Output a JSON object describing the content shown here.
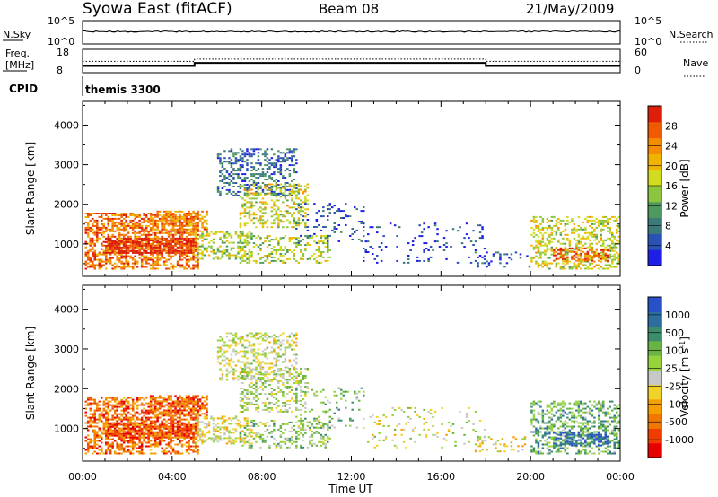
{
  "header": {
    "title": "Syowa East (fitACF)",
    "beam": "Beam 08",
    "date": "21/May/2009"
  },
  "panels": {
    "nsky": {
      "label": "N.Sky",
      "ticks_left": [
        "10^5",
        "10^0"
      ],
      "right_label": "N.Search",
      "ticks_right": [
        "10^5",
        "10^0"
      ],
      "level_frac": 0.55
    },
    "freq": {
      "label_lines": [
        "Freq.",
        "[MHz]"
      ],
      "ticks_left": [
        "18",
        "8"
      ],
      "right_label": "Nave",
      "ticks_right": [
        "60",
        "0"
      ],
      "segments": [
        {
          "start": 0,
          "end": 5,
          "freq": 10.9
        },
        {
          "start": 5,
          "end": 18,
          "freq": 12.2
        },
        {
          "start": 18,
          "end": 24,
          "freq": 10.9
        }
      ],
      "nave_segments": [
        {
          "start": 0,
          "end": 5,
          "nave": 29
        },
        {
          "start": 5,
          "end": 18,
          "nave": 35
        },
        {
          "start": 18,
          "end": 24,
          "nave": 29
        }
      ]
    },
    "cpid": {
      "label": "CPID",
      "program": "themis 3300"
    }
  },
  "colorbars": {
    "power": {
      "title": "Power [dB]",
      "colors": [
        "#1e1ee6",
        "#2a52b4",
        "#3c7a7a",
        "#4e9a5e",
        "#8cc63e",
        "#d2dc1e",
        "#f0b400",
        "#f58c00",
        "#f05a00",
        "#dc1e0a"
      ],
      "labels": [
        "4",
        "8",
        "12",
        "16",
        "20",
        "24",
        "28"
      ]
    },
    "velocity": {
      "title": "Velocity [m s",
      "title_sup": "-1",
      "title_end": "]",
      "colors": [
        "#2850c8",
        "#2e6e9e",
        "#3c8c6e",
        "#6ab446",
        "#96d23c",
        "#c8c8c8",
        "#f0d228",
        "#f5a000",
        "#f07800",
        "#f03c00",
        "#e60000"
      ],
      "labels": [
        "1000",
        "500",
        "100",
        "25",
        "-25",
        "-100",
        "-500",
        "-1000"
      ]
    }
  },
  "chart_data": [
    {
      "type": "heatmap",
      "title": "Power",
      "ylabel": "Slant Range [km]",
      "xlabel": "Time UT",
      "x_ticks": [
        "00:00",
        "04:00",
        "08:00",
        "12:00",
        "16:00",
        "20:00",
        "00:00"
      ],
      "y_ticks": [
        1000,
        2000,
        3000,
        4000
      ],
      "xlim": [
        0,
        24
      ],
      "ylim": [
        180,
        4600
      ],
      "colorbar": "Power [dB]",
      "clusters": [
        {
          "t0": 0.1,
          "t1": 5.1,
          "r0": 350,
          "r1": 1750,
          "level": 0.8,
          "density": 0.55
        },
        {
          "t0": 1.0,
          "t1": 5.0,
          "r0": 750,
          "r1": 1150,
          "level": 0.95,
          "density": 0.75
        },
        {
          "t0": 3.0,
          "t1": 5.5,
          "r0": 1300,
          "r1": 1800,
          "level": 0.75,
          "density": 0.5
        },
        {
          "t0": 5.0,
          "t1": 7.5,
          "r0": 600,
          "r1": 1300,
          "level": 0.5,
          "density": 0.4
        },
        {
          "t0": 6.0,
          "t1": 9.5,
          "r0": 2200,
          "r1": 3400,
          "level": 0.2,
          "density": 0.35
        },
        {
          "t0": 7.0,
          "t1": 10.0,
          "r0": 1400,
          "r1": 2500,
          "level": 0.55,
          "density": 0.35
        },
        {
          "t0": 7.0,
          "t1": 11.0,
          "r0": 500,
          "r1": 1200,
          "level": 0.5,
          "density": 0.3
        },
        {
          "t0": 9.5,
          "t1": 12.5,
          "r0": 1000,
          "r1": 2000,
          "level": 0.15,
          "density": 0.15
        },
        {
          "t0": 12.5,
          "t1": 18.0,
          "r0": 500,
          "r1": 1500,
          "level": 0.1,
          "density": 0.08
        },
        {
          "t0": 17.5,
          "t1": 20.0,
          "r0": 400,
          "r1": 800,
          "level": 0.15,
          "density": 0.2
        },
        {
          "t0": 20.0,
          "t1": 24.0,
          "r0": 350,
          "r1": 1700,
          "level": 0.55,
          "density": 0.4
        },
        {
          "t0": 21.0,
          "t1": 23.5,
          "r0": 550,
          "r1": 900,
          "level": 0.85,
          "density": 0.5
        }
      ]
    },
    {
      "type": "heatmap",
      "title": "Velocity",
      "ylabel": "Slant Range [km]",
      "xlabel": "Time UT",
      "x_ticks": [
        "00:00",
        "04:00",
        "08:00",
        "12:00",
        "16:00",
        "20:00",
        "00:00"
      ],
      "y_ticks": [
        1000,
        2000,
        3000,
        4000
      ],
      "xlim": [
        0,
        24
      ],
      "ylim": [
        180,
        4600
      ],
      "colorbar": "Velocity [m s-1]",
      "clusters": [
        {
          "t0": 0.1,
          "t1": 5.1,
          "r0": 350,
          "r1": 1750,
          "level": 0.8,
          "density": 0.55
        },
        {
          "t0": 1.0,
          "t1": 5.0,
          "r0": 750,
          "r1": 1150,
          "level": 0.85,
          "density": 0.7
        },
        {
          "t0": 3.0,
          "t1": 5.5,
          "r0": 1300,
          "r1": 1800,
          "level": 0.8,
          "density": 0.5
        },
        {
          "t0": 5.0,
          "t1": 7.5,
          "r0": 600,
          "r1": 1300,
          "level": 0.55,
          "density": 0.4
        },
        {
          "t0": 6.0,
          "t1": 9.5,
          "r0": 2200,
          "r1": 3400,
          "level": 0.5,
          "density": 0.35
        },
        {
          "t0": 7.0,
          "t1": 10.0,
          "r0": 1400,
          "r1": 2500,
          "level": 0.45,
          "density": 0.35
        },
        {
          "t0": 7.0,
          "t1": 11.0,
          "r0": 500,
          "r1": 1200,
          "level": 0.4,
          "density": 0.3
        },
        {
          "t0": 9.5,
          "t1": 12.5,
          "r0": 1000,
          "r1": 2000,
          "level": 0.35,
          "density": 0.15
        },
        {
          "t0": 12.5,
          "t1": 18.0,
          "r0": 500,
          "r1": 1500,
          "level": 0.5,
          "density": 0.08
        },
        {
          "t0": 17.5,
          "t1": 20.0,
          "r0": 400,
          "r1": 800,
          "level": 0.55,
          "density": 0.2
        },
        {
          "t0": 20.0,
          "t1": 24.0,
          "r0": 350,
          "r1": 1700,
          "level": 0.3,
          "density": 0.4
        },
        {
          "t0": 21.0,
          "t1": 23.5,
          "r0": 550,
          "r1": 900,
          "level": 0.1,
          "density": 0.5
        }
      ]
    }
  ]
}
